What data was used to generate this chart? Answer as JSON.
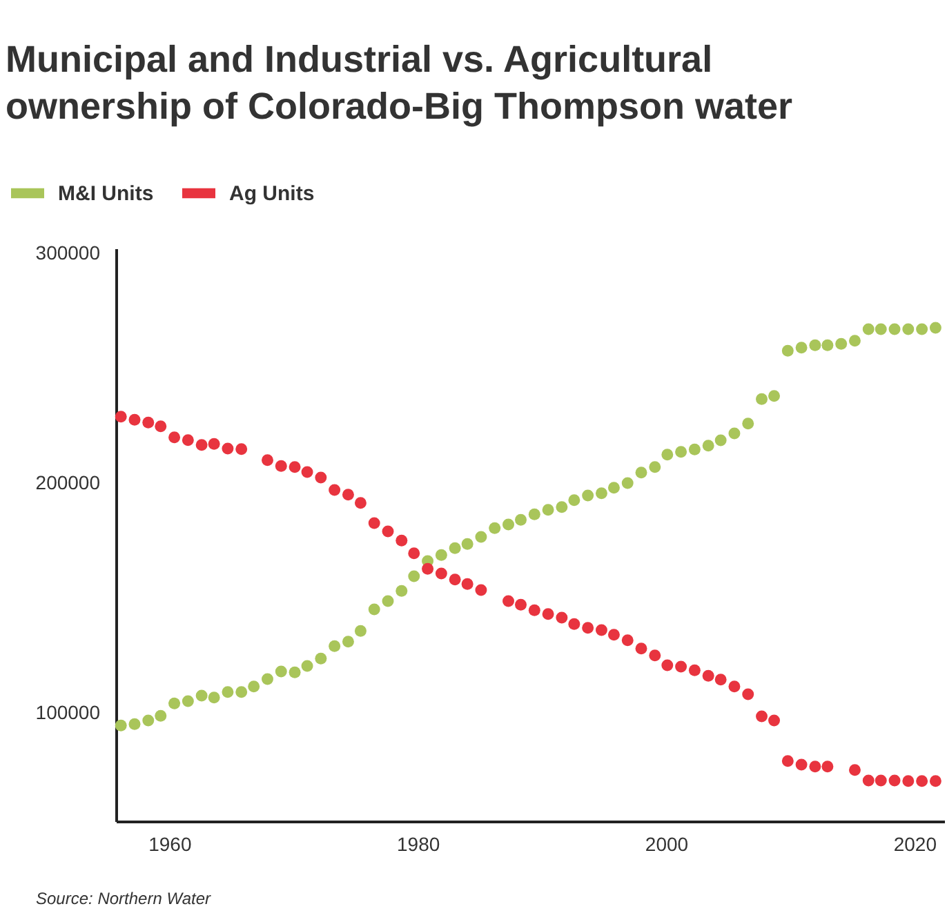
{
  "chart_data": {
    "type": "scatter",
    "title": "Municipal and Industrial vs. Agricultural ownership of Colorado-Big Thompson water",
    "annotations": [
      "Source: Northern Water"
    ],
    "x": [
      1956.1,
      1957.2,
      1958.3,
      1959.3,
      1960.4,
      1961.5,
      1962.6,
      1963.6,
      1964.7,
      1965.8,
      1966.8,
      1967.9,
      1969.0,
      1970.1,
      1971.1,
      1972.2,
      1973.3,
      1974.4,
      1975.4,
      1976.5,
      1977.6,
      1978.7,
      1979.7,
      1980.8,
      1981.9,
      1983.0,
      1984.0,
      1985.1,
      1986.2,
      1987.3,
      1988.3,
      1989.4,
      1990.5,
      1991.6,
      1992.6,
      1993.7,
      1994.8,
      1995.8,
      1996.9,
      1998.0,
      1999.1,
      2000.1,
      2001.2,
      2002.3,
      2003.4,
      2004.4,
      2005.5,
      2006.6,
      2007.7,
      2008.7,
      2009.8,
      2010.9,
      2012.0,
      2013.0,
      2014.1,
      2015.2,
      2016.3,
      2017.3,
      2018.4,
      2019.5,
      2020.6,
      2021.7
    ],
    "series": [
      {
        "name": "M&I Units",
        "color": "#a9c55a",
        "values": [
          94600,
          95200,
          96800,
          98800,
          104200,
          105200,
          107600,
          106800,
          109200,
          109200,
          111600,
          114800,
          118100,
          117700,
          120500,
          123700,
          129100,
          131100,
          135700,
          145100,
          148700,
          153100,
          159500,
          166100,
          168700,
          171700,
          173500,
          176600,
          180400,
          182000,
          184000,
          186400,
          188400,
          189600,
          192600,
          194600,
          195600,
          198000,
          200000,
          204600,
          207000,
          212400,
          213600,
          214600,
          216300,
          218600,
          221600,
          225900,
          236500,
          237900,
          257500,
          258900,
          259900,
          259900,
          260500,
          261900,
          266900,
          266900,
          266900,
          266900,
          266900,
          267500
        ]
      },
      {
        "name": "Ag Units",
        "color": "#e8343f",
        "values": [
          228900,
          227500,
          226300,
          224700,
          219900,
          218700,
          216600,
          217000,
          215000,
          214800,
          null,
          210000,
          207400,
          207000,
          204800,
          202400,
          197000,
          195000,
          191400,
          182600,
          179000,
          175000,
          169500,
          162700,
          160700,
          158100,
          156100,
          153500,
          null,
          148700,
          147100,
          144700,
          143100,
          141500,
          138700,
          137100,
          136100,
          134100,
          131700,
          128100,
          125100,
          120800,
          120200,
          118600,
          116200,
          114600,
          111600,
          108200,
          98600,
          96800,
          79200,
          77600,
          76800,
          76800,
          null,
          75300,
          70700,
          70700,
          70700,
          70500,
          70500,
          70500
        ]
      }
    ],
    "xlim": [
      1955.7,
      2022.4
    ],
    "xticks": [
      1960,
      1980,
      2000,
      2020
    ],
    "ylim": [
      53000,
      302000
    ],
    "yticks": [
      100000,
      200000,
      300000
    ],
    "grid": false,
    "legend": "top left",
    "marker": "circle"
  }
}
